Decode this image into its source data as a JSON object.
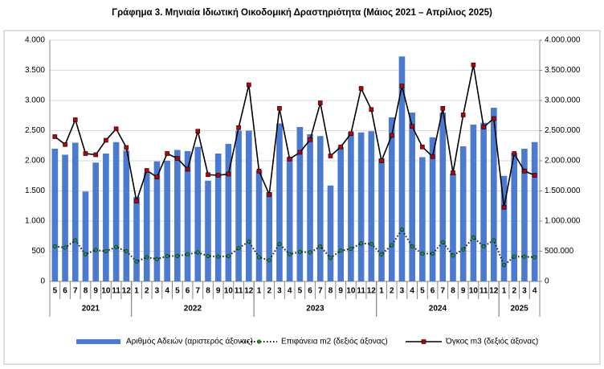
{
  "chart_data": {
    "type": "combo",
    "title": "Γράφημα 3. Μηνιαία Ιδιωτική Οικοδομική Δραστηριότητα (Μάιος 2021 – Απρίλιος 2025)",
    "categories": [
      "5",
      "6",
      "7",
      "8",
      "9",
      "10",
      "11",
      "12",
      "1",
      "2",
      "3",
      "4",
      "5",
      "6",
      "7",
      "8",
      "9",
      "10",
      "11",
      "12",
      "1",
      "2",
      "3",
      "4",
      "5",
      "6",
      "7",
      "8",
      "9",
      "10",
      "11",
      "12",
      "1",
      "2",
      "3",
      "4",
      "5",
      "6",
      "7",
      "8",
      "9",
      "10",
      "11",
      "12",
      "1",
      "2",
      "3",
      "4"
    ],
    "groups": [
      {
        "label": "2021",
        "size": 8
      },
      {
        "label": "2022",
        "size": 12
      },
      {
        "label": "2023",
        "size": 12
      },
      {
        "label": "2024",
        "size": 12
      },
      {
        "label": "2025",
        "size": 4
      }
    ],
    "series": [
      {
        "name": "Αριθμός Αδειών (αριστερός άξονας)",
        "type": "bar",
        "axis": "y",
        "color": "#4a7bd0",
        "values": [
          2200,
          2100,
          2300,
          1490,
          1970,
          2120,
          2310,
          2170,
          1400,
          1800,
          1990,
          2000,
          2180,
          2160,
          2230,
          1670,
          2120,
          2280,
          2500,
          2500,
          1840,
          1480,
          2620,
          2060,
          2560,
          2440,
          2410,
          1590,
          2230,
          2480,
          2470,
          2490,
          2040,
          2720,
          3730,
          2800,
          2060,
          2390,
          2800,
          1790,
          2240,
          2600,
          2630,
          2880,
          1750,
          2130,
          2200,
          2310
        ]
      },
      {
        "name": "Επιφάνεια m2 (δεξιός άξονας)",
        "type": "line",
        "axis": "y2",
        "color": "#1a1a1a",
        "style": "dotted",
        "marker": "circle",
        "marker_color": "#2e8b2e",
        "values": [
          580000,
          560000,
          680000,
          450000,
          520000,
          500000,
          570000,
          500000,
          330000,
          400000,
          370000,
          420000,
          420000,
          450000,
          480000,
          420000,
          410000,
          420000,
          550000,
          660000,
          400000,
          350000,
          620000,
          450000,
          490000,
          480000,
          580000,
          390000,
          510000,
          540000,
          630000,
          620000,
          450000,
          600000,
          860000,
          580000,
          460000,
          460000,
          650000,
          430000,
          530000,
          730000,
          580000,
          680000,
          270000,
          410000,
          410000,
          400000
        ]
      },
      {
        "name": "Όγκος m3 (δεξιός άξονας)",
        "type": "line",
        "axis": "y2",
        "color": "#000000",
        "style": "solid",
        "marker": "square",
        "marker_color": "#c00000",
        "values": [
          2400000,
          2270000,
          2680000,
          2120000,
          2100000,
          2340000,
          2530000,
          2220000,
          1330000,
          1840000,
          1730000,
          2120000,
          2040000,
          1860000,
          2490000,
          1770000,
          1760000,
          1780000,
          2550000,
          3260000,
          1830000,
          1440000,
          2870000,
          2030000,
          2140000,
          2350000,
          2960000,
          2080000,
          2230000,
          2450000,
          3200000,
          2850000,
          2000000,
          2420000,
          3240000,
          2570000,
          2230000,
          2070000,
          2870000,
          1800000,
          2760000,
          3590000,
          2560000,
          2700000,
          1230000,
          2120000,
          1830000,
          1760000
        ]
      }
    ],
    "ylim": [
      0,
      4000
    ],
    "yticks": [
      0,
      500,
      {
        "value": 1000,
        "label": "1.000"
      },
      {
        "value": 1500,
        "label": "1.500"
      },
      {
        "value": 2000,
        "label": "2.000"
      },
      {
        "value": 2500,
        "label": "2.500"
      },
      {
        "value": 3000,
        "label": "3.000"
      },
      {
        "value": 3500,
        "label": "3.500"
      },
      {
        "value": 4000,
        "label": "4.000"
      }
    ],
    "y2lim": [
      0,
      4000000
    ],
    "y2ticks": [
      0,
      {
        "value": 500000,
        "label": "500.000"
      },
      {
        "value": 1000000,
        "label": "1.000.000"
      },
      {
        "value": 1500000,
        "label": "1.500.000"
      },
      {
        "value": 2000000,
        "label": "2.000.000"
      },
      {
        "value": 2500000,
        "label": "2.500.000"
      },
      {
        "value": 3000000,
        "label": "3.000.000"
      },
      {
        "value": 3500000,
        "label": "3.500.000"
      },
      {
        "value": 4000000,
        "label": "4.000.000"
      }
    ],
    "grid": true,
    "legend": "bottom"
  }
}
